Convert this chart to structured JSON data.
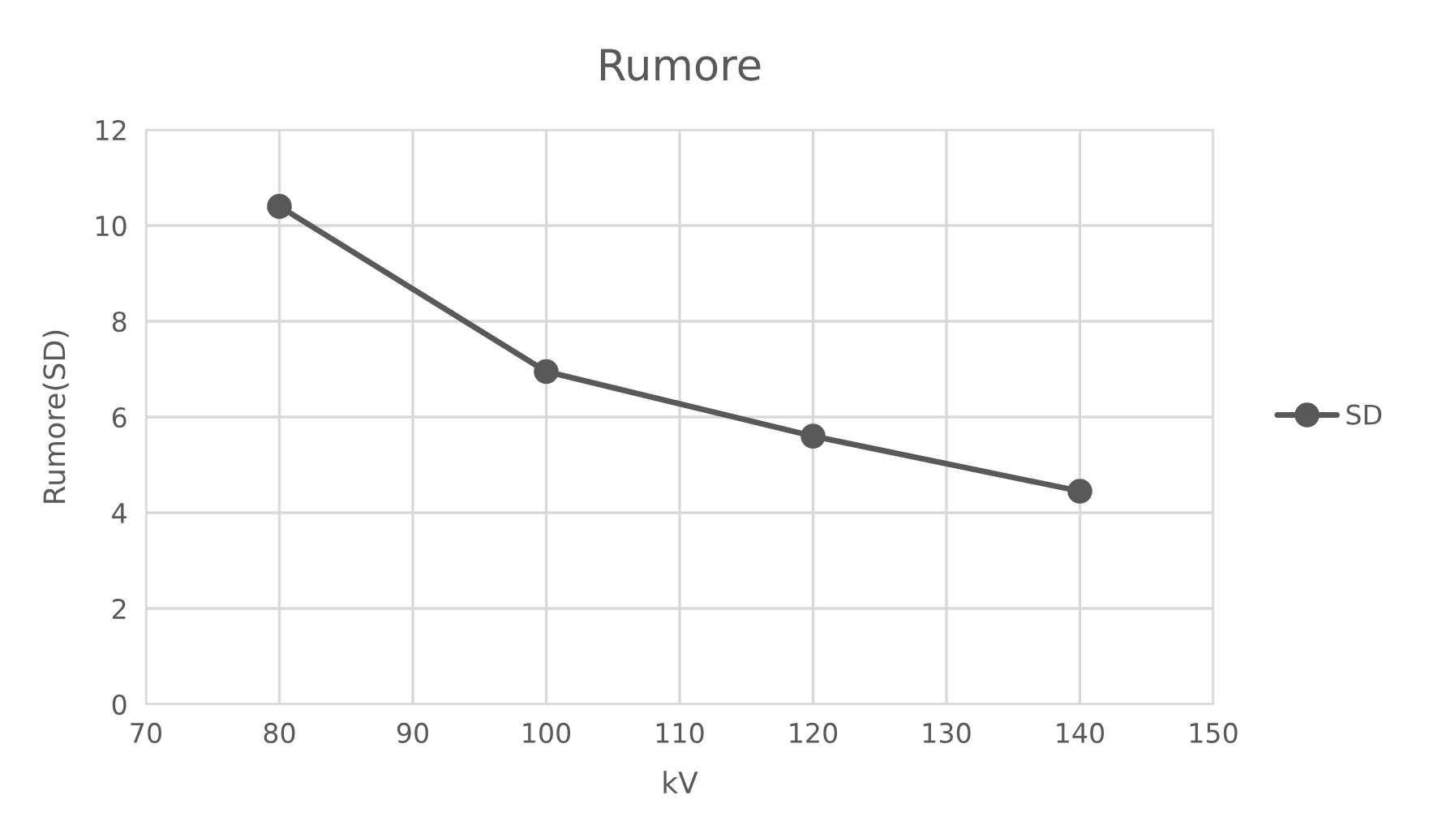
{
  "chart_data": {
    "type": "line",
    "title": "Rumore",
    "xlabel": "kV",
    "ylabel": "Rumore(SD)",
    "x": [
      80,
      100,
      120,
      140
    ],
    "series": [
      {
        "name": "SD",
        "color": "#595959",
        "values": [
          10.4,
          6.95,
          5.6,
          4.45
        ]
      }
    ],
    "xlim": [
      70,
      150
    ],
    "xticks": [
      70,
      80,
      90,
      100,
      110,
      120,
      130,
      140,
      150
    ],
    "ylim": [
      0,
      12
    ],
    "yticks": [
      0,
      2,
      4,
      6,
      8,
      10,
      12
    ],
    "grid": true,
    "legend": "right",
    "marker": "circle",
    "line_style": "solid"
  }
}
